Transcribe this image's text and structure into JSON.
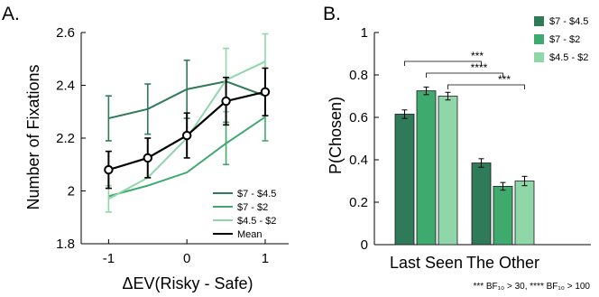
{
  "chart_data": [
    {
      "panel_label": "A.",
      "type": "line",
      "xlabel": "ΔEV(Risky - Safe)",
      "ylabel": "Number of Fixations",
      "xlim": [
        -1.35,
        1.3
      ],
      "ylim": [
        1.8,
        2.6
      ],
      "x_ticks": [
        -1,
        0,
        1
      ],
      "x_tick_labels": [
        "-1",
        "0",
        "1"
      ],
      "y_ticks": [
        1.8,
        2.0,
        2.2,
        2.4,
        2.6
      ],
      "y_tick_labels": [
        "1.8",
        "2",
        "2.2",
        "2.4",
        "2.6"
      ],
      "legend_position": "bottom-right",
      "x": [
        -1,
        -0.5,
        0,
        0.5,
        1
      ],
      "series": [
        {
          "name": "$7 - $4.5",
          "color": "#2f7a58",
          "values": [
            2.275,
            2.31,
            2.385,
            2.415,
            2.36
          ],
          "errors": [
            0.085,
            0.095,
            0.11,
            0.0,
            0.0
          ]
        },
        {
          "name": "$7 - $2",
          "color": "#3faa6e",
          "values": [
            1.98,
            2.02,
            2.07,
            2.18,
            2.28
          ],
          "errors": [
            0.0,
            0.0,
            0.0,
            0.08,
            0.09
          ]
        },
        {
          "name": "$4.5 - $2",
          "color": "#8fd6a8",
          "values": [
            1.97,
            2.05,
            2.2,
            2.42,
            2.49
          ],
          "errors": [
            0.05,
            0.0,
            0.0,
            0.12,
            0.105
          ]
        },
        {
          "name": "Mean",
          "color": "#000000",
          "marker": "circle",
          "values": [
            2.08,
            2.125,
            2.21,
            2.34,
            2.375
          ],
          "errors": [
            0.07,
            0.075,
            0.085,
            0.09,
            0.09
          ]
        }
      ]
    },
    {
      "panel_label": "B.",
      "type": "bar",
      "ylabel": "P(Chosen)",
      "ylim": [
        0,
        1
      ],
      "y_ticks": [
        0,
        0.2,
        0.4,
        0.6,
        0.8,
        1
      ],
      "y_tick_labels": [
        "0",
        "0.2",
        "0.4",
        "0.6",
        "0.8",
        "1"
      ],
      "categories": [
        "Last Seen",
        "The Other"
      ],
      "legend_position": "top-right",
      "series": [
        {
          "name": "$7 - $4.5",
          "color": "#2f7a58",
          "values": [
            0.615,
            0.385
          ],
          "errors": [
            0.02,
            0.02
          ]
        },
        {
          "name": "$7 - $2",
          "color": "#3faa6e",
          "values": [
            0.725,
            0.275
          ],
          "errors": [
            0.018,
            0.018
          ]
        },
        {
          "name": "$4.5 - $2",
          "color": "#8fd6a8",
          "values": [
            0.7,
            0.3
          ],
          "errors": [
            0.018,
            0.022
          ]
        }
      ],
      "significance": [
        {
          "label": "***",
          "series_index": 0
        },
        {
          "label": "****",
          "series_index": 1
        },
        {
          "label": "***",
          "series_index": 2
        }
      ],
      "footnote": "*** BF₁₀ > 30, **** BF₁₀ > 100"
    }
  ]
}
